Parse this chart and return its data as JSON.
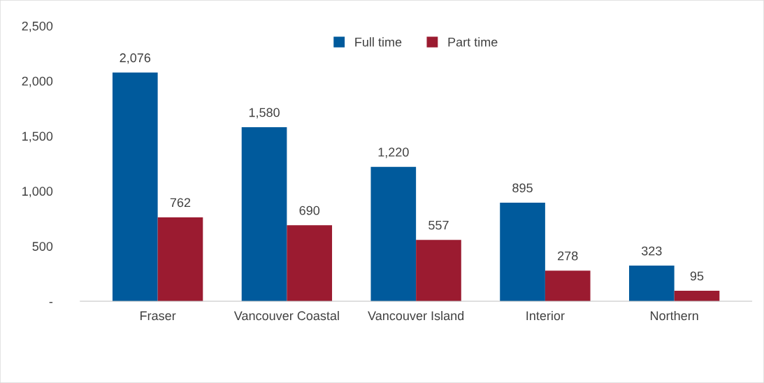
{
  "chart_data": {
    "type": "bar",
    "categories": [
      "Fraser",
      "Vancouver Coastal",
      "Vancouver Island",
      "Interior",
      "Northern"
    ],
    "series": [
      {
        "name": "Full time",
        "color": "#005a9c",
        "values": [
          2076,
          1580,
          1220,
          895,
          323
        ],
        "value_labels": [
          "2,076",
          "1,580",
          "1,220",
          "895",
          "323"
        ]
      },
      {
        "name": "Part time",
        "color": "#9b1b30",
        "values": [
          762,
          690,
          557,
          278,
          95
        ],
        "value_labels": [
          "762",
          "690",
          "557",
          "278",
          "95"
        ]
      }
    ],
    "ylim": [
      0,
      2500
    ],
    "yticks": [
      {
        "value": 0,
        "label": "-"
      },
      {
        "value": 500,
        "label": "500"
      },
      {
        "value": 1000,
        "label": "1,000"
      },
      {
        "value": 1500,
        "label": "1,500"
      },
      {
        "value": 2000,
        "label": "2,000"
      },
      {
        "value": 2500,
        "label": "2,500"
      }
    ],
    "grid": false,
    "legend": "top"
  }
}
